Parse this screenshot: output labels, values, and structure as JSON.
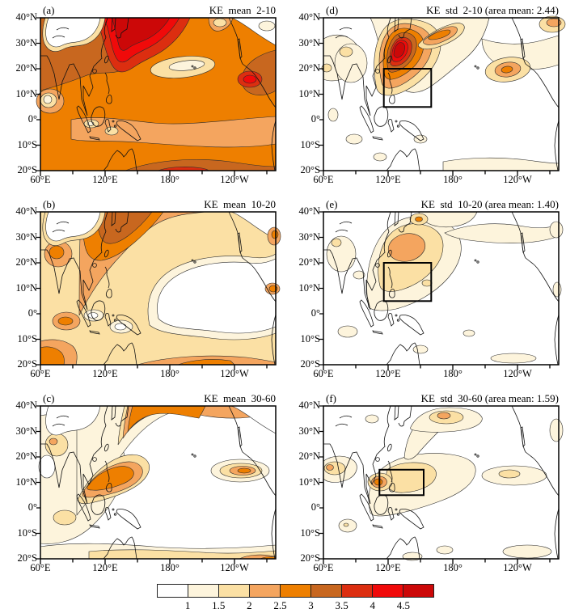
{
  "figure": {
    "description": "Six-panel filled contour maps of kinetic energy (KE) over the Indo-Pacific, 60E-80W and 20S-40N; left column shows means, right column standard deviations for three intraseasonal bands, with shared color scale below."
  },
  "axes": {
    "lat_labels": [
      "40°N",
      "30°N",
      "20°N",
      "10°N",
      "0°",
      "10°S",
      "20°S"
    ],
    "lon_labels": [
      "60°E",
      "120°E",
      "180°",
      "120°W"
    ]
  },
  "panels": [
    {
      "label": "(a)",
      "title": "KE  mean  2-10"
    },
    {
      "label": "(b)",
      "title": "KE  mean  10-20"
    },
    {
      "label": "(c)",
      "title": "KE  mean  30-60"
    },
    {
      "label": "(d)",
      "title": "KE  std  2-10 (area mean: 2.44)"
    },
    {
      "label": "(e)",
      "title": "KE  std  10-20 (area mean: 1.40)"
    },
    {
      "label": "(f)",
      "title": "KE  std  30-60 (area mean: 1.59)"
    }
  ],
  "colorbar": {
    "labels": [
      "1",
      "1.5",
      "2",
      "2.5",
      "3",
      "3.5",
      "4",
      "4.5"
    ],
    "colors": [
      "#ffffff",
      "#fdf4dc",
      "#fbe0a4",
      "#f4a55f",
      "#ee7f00",
      "#c8671f",
      "#dc2e10",
      "#f00a0a",
      "#cc0808"
    ]
  },
  "chart_data": {
    "type": "heatmap",
    "subtype": "filled-contour-maps",
    "lon_range": [
      "60°E",
      "80°W"
    ],
    "lat_range": [
      "20°S",
      "40°N"
    ],
    "lon_ticks": [
      "60°E",
      "120°E",
      "180°",
      "120°W"
    ],
    "lat_ticks": [
      "40°N",
      "30°N",
      "20°N",
      "10°N",
      "0°",
      "10°S",
      "20°S"
    ],
    "levels": [
      1,
      1.5,
      2,
      2.5,
      3,
      3.5,
      4,
      4.5
    ],
    "palette": [
      "#ffffff",
      "#fdf4dc",
      "#fbe0a4",
      "#f4a55f",
      "#ee7f00",
      "#c8671f",
      "#dc2e10",
      "#f00a0a",
      "#cc0808"
    ],
    "panels": [
      {
        "label": "(a)",
        "stat": "mean",
        "band": "2-10",
        "area_mean": null,
        "features": "Broad values 2.5-3.5 over most of domain; maximum >4.5 over NW Pacific 110E-160E, 20-40N; secondary red maximum near 105W, 15N; minima <1 over Tibetan Plateau and <2 near 20N, 180; band 2-2.5 along 0-10S."
      },
      {
        "label": "(b)",
        "stat": "mean",
        "band": "10-20",
        "area_mean": null,
        "features": "Maximum 3-3.5 over 110E-150E, 25-40N; values <1 over central/east Pacific 160E-110W near 0-20N; 1.5-2.5 elsewhere west; 2.5-3 patches near India, 85E equator and 15-20S."
      },
      {
        "label": "(c)",
        "stat": "mean",
        "band": "30-60",
        "area_mean": null,
        "features": "Mostly <1.5; diagonal 2.5-3 band from South China Sea/Philippine Sea (8-15N) to 30-40N, 125E-180; 2-3 lens near 10-15N, 130-95W; light band along 15-20S."
      },
      {
        "label": "(d)",
        "stat": "std",
        "band": "2-10",
        "area_mean": 2.44,
        "box_lon": [
          "116°E",
          "160°E"
        ],
        "box_lat": [
          "5°N",
          "20°N"
        ],
        "features": "Strong maximum >4.5 centered ~125E, 22N over Philippine Sea with concentric contours; secondary 2-2.5 maximum near 130W, 20N; mostly <1.5 elsewhere."
      },
      {
        "label": "(e)",
        "stat": "std",
        "band": "10-20",
        "area_mean": 1.4,
        "box_lon": [
          "116°E",
          "160°E"
        ],
        "box_lat": [
          "5°N",
          "20°N"
        ],
        "features": "Maximum 2-2.5 near 120-140E, 18-28N; 1.5-2 inside analysis box; small 2.5-3 spot near 148E, 38N; mostly <1.5 elsewhere."
      },
      {
        "label": "(f)",
        "stat": "std",
        "band": "30-60",
        "area_mean": 1.59,
        "box_lon": [
          "112°E",
          "153°E"
        ],
        "box_lat": [
          "5°N",
          "15°N"
        ],
        "features": "Local maximum 2.5-3 near 113E, 10N west of Philippines; 1.5-2 within box; 1.5-2.5 spots near 150E, 37N and 62E, 10N; mostly <1.5 elsewhere."
      }
    ],
    "legend_position": "bottom",
    "grid": false
  }
}
